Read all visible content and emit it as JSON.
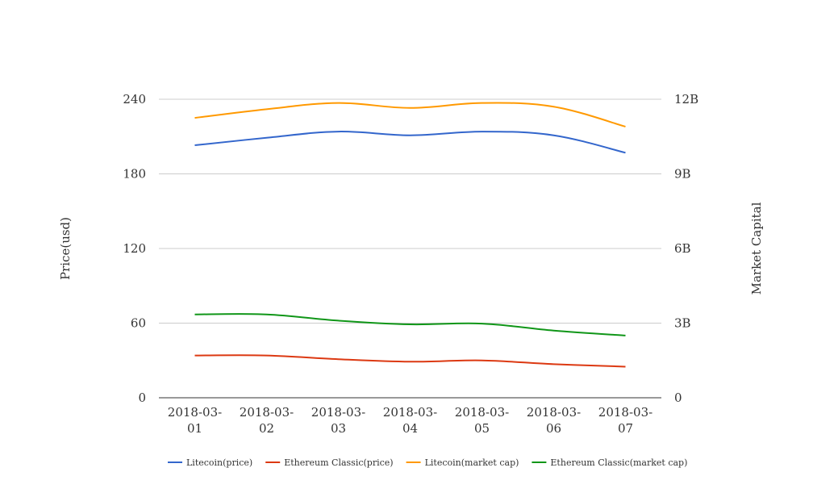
{
  "chart_data": {
    "type": "line",
    "title": "",
    "categories": [
      "2018-03-01",
      "2018-03-02",
      "2018-03-03",
      "2018-03-04",
      "2018-03-05",
      "2018-03-06",
      "2018-03-07"
    ],
    "category_lines": [
      [
        "2018-03-",
        "01"
      ],
      [
        "2018-03-",
        "02"
      ],
      [
        "2018-03-",
        "03"
      ],
      [
        "2018-03-",
        "04"
      ],
      [
        "2018-03-",
        "05"
      ],
      [
        "2018-03-",
        "06"
      ],
      [
        "2018-03-",
        "07"
      ]
    ],
    "y_left": {
      "label": "Price(usd)",
      "ticks": [
        0,
        60,
        120,
        180,
        240
      ],
      "tick_labels": [
        "0",
        "60",
        "120",
        "180",
        "240"
      ],
      "range": [
        0,
        240
      ]
    },
    "y_right": {
      "label": "Market Capital",
      "ticks": [
        0,
        3000000000,
        6000000000,
        9000000000,
        12000000000
      ],
      "tick_labels": [
        "0",
        "3B",
        "6B",
        "9B",
        "12B"
      ],
      "range": [
        0,
        12000000000
      ]
    },
    "grid": true,
    "legend_position": "bottom",
    "series": [
      {
        "name": "Litecoin(price)",
        "axis": "left",
        "color": "#3366cc",
        "values": [
          203,
          209,
          214,
          211,
          214,
          211,
          197
        ]
      },
      {
        "name": "Ethereum Classic(price)",
        "axis": "left",
        "color": "#dc3912",
        "values": [
          34,
          34,
          31,
          29,
          30,
          27,
          25
        ]
      },
      {
        "name": "Litecoin(market cap)",
        "axis": "right",
        "color": "#ff9900",
        "values": [
          11250000000,
          11600000000,
          11850000000,
          11650000000,
          11850000000,
          11700000000,
          10900000000
        ]
      },
      {
        "name": "Ethereum Classic(market cap)",
        "axis": "right",
        "color": "#109618",
        "values": [
          3350000000,
          3350000000,
          3100000000,
          2950000000,
          2980000000,
          2700000000,
          2500000000
        ]
      }
    ]
  }
}
